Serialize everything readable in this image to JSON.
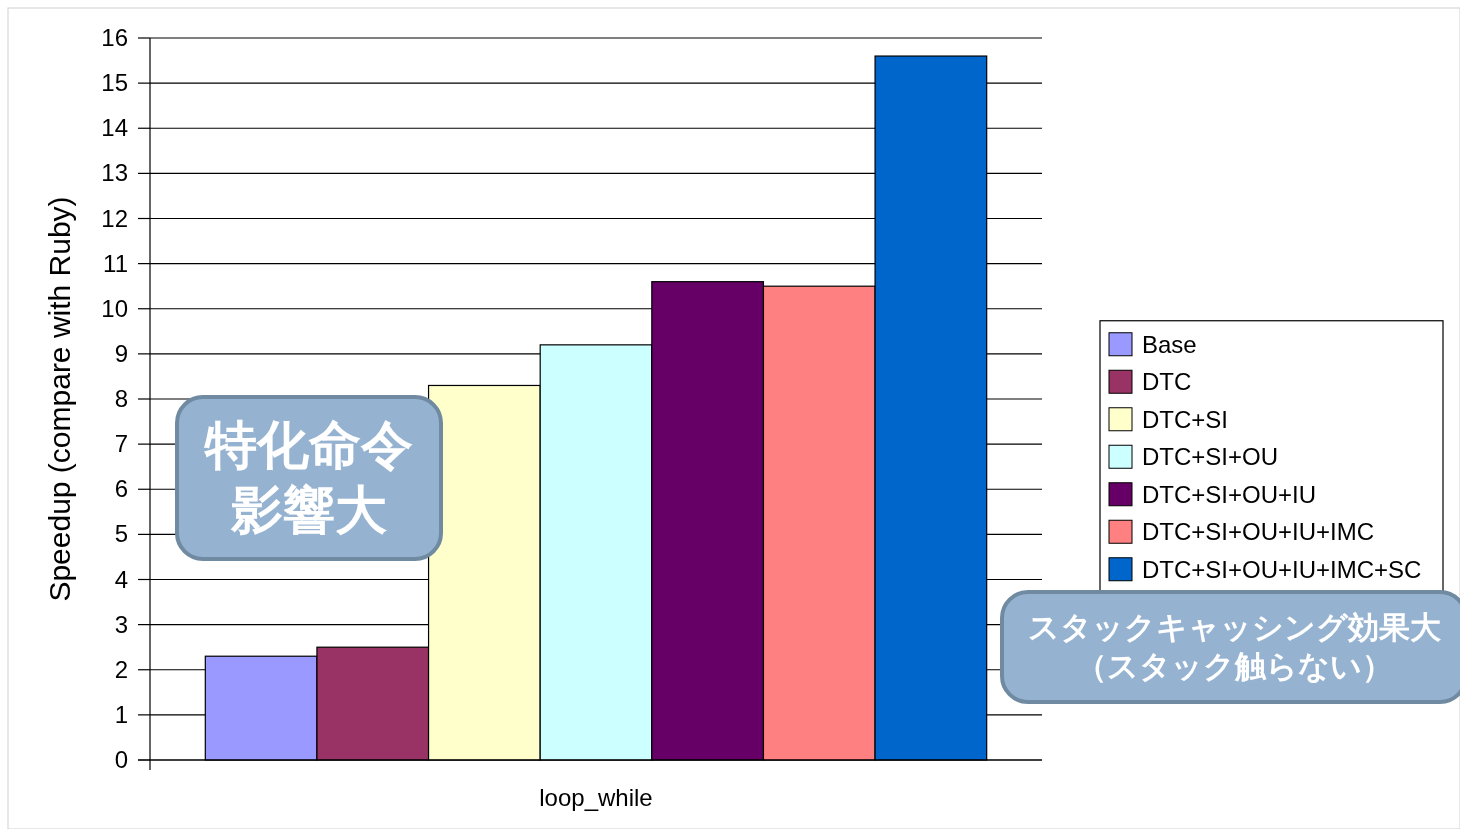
{
  "chart_data": {
    "type": "bar",
    "ylabel": "Speedup (compare with Ruby)",
    "categories": [
      "loop_while"
    ],
    "series": [
      {
        "name": "Base",
        "color": "#9999ff",
        "values": [
          2.3
        ]
      },
      {
        "name": "DTC",
        "color": "#993366",
        "values": [
          2.5
        ]
      },
      {
        "name": "DTC+SI",
        "color": "#ffffcc",
        "values": [
          8.3
        ]
      },
      {
        "name": "DTC+SI+OU",
        "color": "#ccffff",
        "values": [
          9.2
        ]
      },
      {
        "name": "DTC+SI+OU+IU",
        "color": "#660066",
        "values": [
          10.6
        ]
      },
      {
        "name": "DTC+SI+OU+IU+IMC",
        "color": "#ff8080",
        "values": [
          10.5
        ]
      },
      {
        "name": "DTC+SI+OU+IU+IMC+SC",
        "color": "#0066cc",
        "values": [
          15.6
        ]
      }
    ],
    "ylim": [
      0,
      16
    ],
    "yticks": [
      0,
      1,
      2,
      3,
      4,
      5,
      6,
      7,
      8,
      9,
      10,
      11,
      12,
      13,
      14,
      15,
      16
    ],
    "grid": "y",
    "legend": "right",
    "annotations": [
      "特化命令影響大",
      "スタックキャッシング効果大（スタック触らない）"
    ]
  }
}
